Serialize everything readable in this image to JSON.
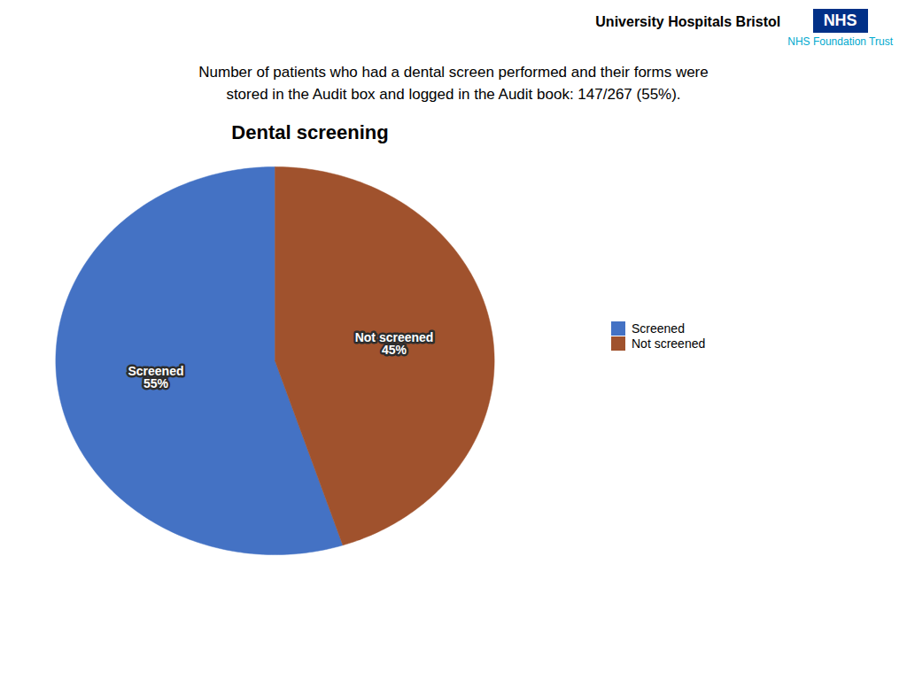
{
  "chart_data": {
    "type": "pie",
    "title": "Dental screening",
    "subtitle": "Number of patients who had a dental screen performed and their forms were\nstored in the Audit box and logged in the Audit book: 147/267 (55%).",
    "annotations": [
      "University Hospitals Bristol",
      "NHS",
      "NHS Foundation Trust"
    ],
    "categories": [
      "Screened",
      "Not screened"
    ],
    "values": [
      55,
      45
    ],
    "value_labels": [
      "55%",
      "45%"
    ],
    "colors": [
      "#4472C4",
      "#A0522D"
    ],
    "data_labels": true,
    "legend": "right"
  }
}
